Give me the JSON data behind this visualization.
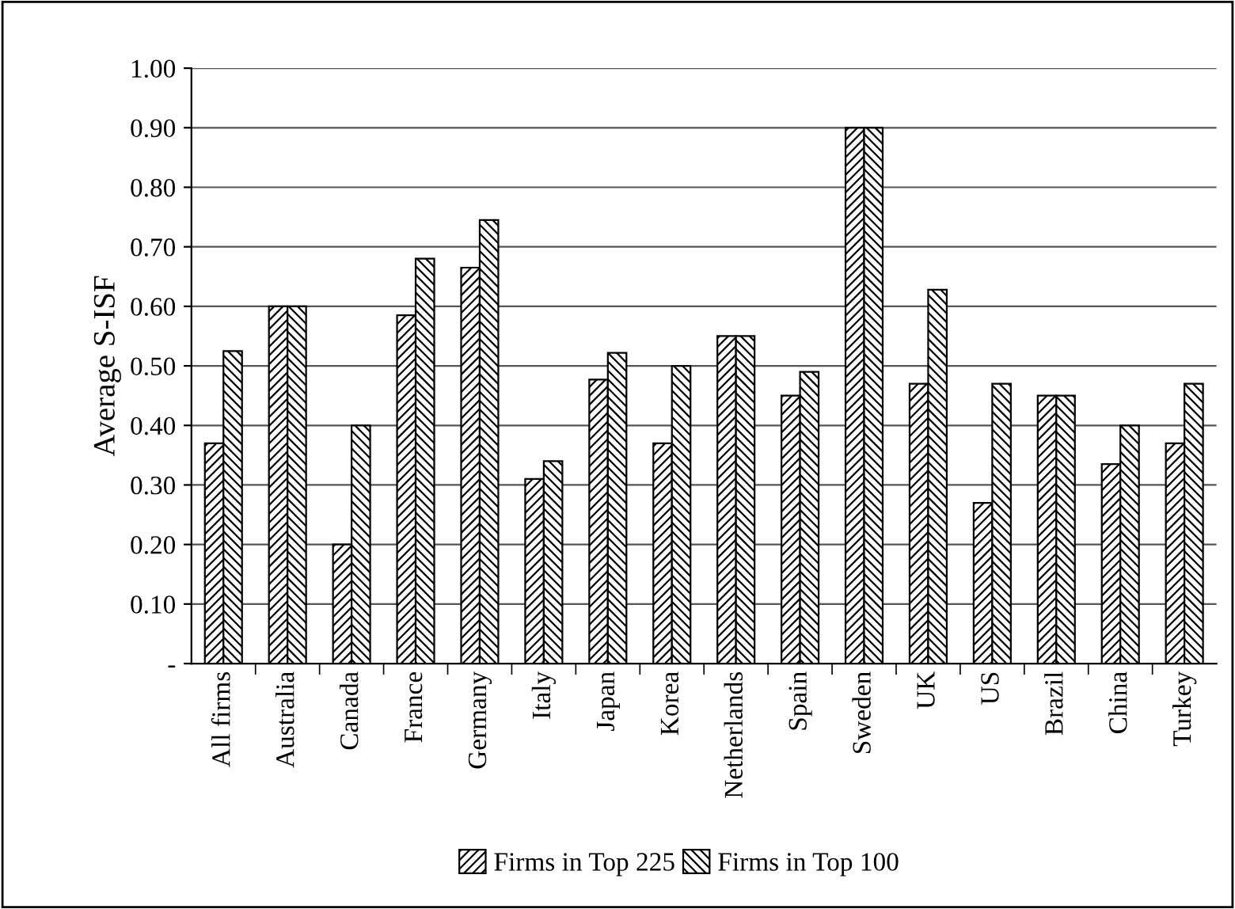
{
  "chart_data": {
    "type": "bar",
    "ylabel": "Average S-ISF",
    "categories": [
      "All firms",
      "Australia",
      "Canada",
      "France",
      "Germany",
      "Italy",
      "Japan",
      "Korea",
      "Netherlands",
      "Spain",
      "Sweden",
      "UK",
      "US",
      "Brazil",
      "China",
      "Turkey"
    ],
    "series": [
      {
        "name": "Firms in Top 225",
        "color": "#000000",
        "values": [
          0.37,
          0.6,
          0.2,
          0.585,
          0.665,
          0.31,
          0.477,
          0.37,
          0.55,
          0.45,
          0.9,
          0.47,
          0.27,
          0.45,
          0.335,
          0.37
        ]
      },
      {
        "name": "Firms in Top 100",
        "color": "#000000",
        "values": [
          0.525,
          0.6,
          0.4,
          0.68,
          0.745,
          0.34,
          0.522,
          0.5,
          0.55,
          0.49,
          0.9,
          0.628,
          0.47,
          0.45,
          0.4,
          0.47
        ]
      }
    ],
    "ylim": [
      0,
      1
    ],
    "yticks": [
      {
        "value": 0,
        "label": "-"
      },
      {
        "value": 0.1,
        "label": "0.10"
      },
      {
        "value": 0.2,
        "label": "0.20"
      },
      {
        "value": 0.3,
        "label": "0.30"
      },
      {
        "value": 0.4,
        "label": "0.40"
      },
      {
        "value": 0.5,
        "label": "0.50"
      },
      {
        "value": 0.6,
        "label": "0.60"
      },
      {
        "value": 0.7,
        "label": "0.70"
      },
      {
        "value": 0.8,
        "label": "0.80"
      },
      {
        "value": 0.9,
        "label": "0.90"
      },
      {
        "value": 1,
        "label": "1.00"
      }
    ],
    "grid": "y",
    "legend": "bottom"
  }
}
